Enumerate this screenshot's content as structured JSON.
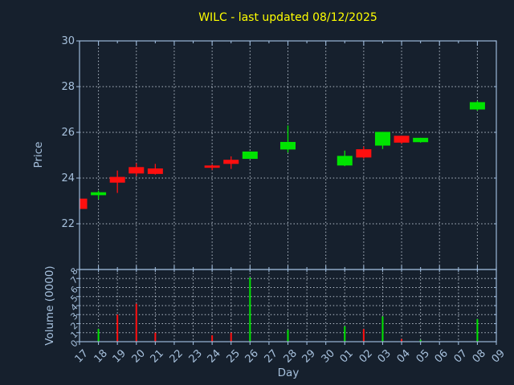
{
  "title": {
    "text": "WILC - last updated 08/12/2025",
    "color": "#ffff00"
  },
  "colors": {
    "background": "#16202d",
    "frame": "#9cb8d8",
    "grid": "#c3cdd9",
    "tick_label": "#a6c0dc",
    "up": "#00e400",
    "down": "#ff0f0f"
  },
  "chart_data": [
    {
      "type": "candlestick",
      "title": "WILC - last updated 08/12/2025",
      "xlabel": "Day",
      "ylabel": "Price",
      "categories": [
        "17",
        "18",
        "19",
        "20",
        "21",
        "22",
        "23",
        "24",
        "25",
        "26",
        "27",
        "28",
        "29",
        "30",
        "01",
        "02",
        "03",
        "04",
        "05",
        "06",
        "07",
        "08",
        "09"
      ],
      "ylim": [
        20,
        30
      ],
      "yticks": [
        22,
        24,
        26,
        28,
        30
      ],
      "grid": true,
      "legend": "none",
      "candles": [
        {
          "day": "17",
          "open": 23.1,
          "high": 23.12,
          "low": 22.62,
          "close": 22.65
        },
        {
          "day": "18",
          "open": 23.25,
          "high": 23.45,
          "low": 23.07,
          "close": 23.38
        },
        {
          "day": "19",
          "open": 24.05,
          "high": 24.33,
          "low": 23.35,
          "close": 23.8
        },
        {
          "day": "20",
          "open": 24.48,
          "high": 24.65,
          "low": 24.08,
          "close": 24.2
        },
        {
          "day": "21",
          "open": 24.42,
          "high": 24.62,
          "low": 24.15,
          "close": 24.18
        },
        {
          "day": "24",
          "open": 24.55,
          "high": 24.6,
          "low": 24.35,
          "close": 24.45
        },
        {
          "day": "25",
          "open": 24.8,
          "high": 24.95,
          "low": 24.4,
          "close": 24.62
        },
        {
          "day": "26",
          "open": 24.84,
          "high": 25.16,
          "low": 24.84,
          "close": 25.16
        },
        {
          "day": "28",
          "open": 25.25,
          "high": 26.3,
          "low": 25.12,
          "close": 25.58
        },
        {
          "day": "01",
          "open": 24.55,
          "high": 25.2,
          "low": 24.52,
          "close": 24.97
        },
        {
          "day": "02",
          "open": 25.26,
          "high": 25.38,
          "low": 24.85,
          "close": 24.9
        },
        {
          "day": "03",
          "open": 25.42,
          "high": 26.02,
          "low": 25.27,
          "close": 26.02
        },
        {
          "day": "04",
          "open": 25.85,
          "high": 25.85,
          "low": 25.5,
          "close": 25.55
        },
        {
          "day": "05",
          "open": 25.57,
          "high": 25.76,
          "low": 25.55,
          "close": 25.76
        },
        {
          "day": "08",
          "open": 27.0,
          "high": 27.38,
          "low": 26.95,
          "close": 27.32
        }
      ]
    },
    {
      "type": "bar",
      "ylabel": "Volume (0000)",
      "categories": [
        "17",
        "18",
        "19",
        "20",
        "21",
        "22",
        "23",
        "24",
        "25",
        "26",
        "27",
        "28",
        "29",
        "30",
        "01",
        "02",
        "03",
        "04",
        "05",
        "06",
        "07",
        "08",
        "09"
      ],
      "ylim": [
        0,
        8
      ],
      "yticks": [
        0,
        1,
        2,
        3,
        4,
        5,
        6,
        7,
        8
      ],
      "grid": true,
      "bars": [
        {
          "day": "18",
          "value": 1.4,
          "direction": "up"
        },
        {
          "day": "19",
          "value": 3.0,
          "direction": "down"
        },
        {
          "day": "20",
          "value": 4.2,
          "direction": "down"
        },
        {
          "day": "21",
          "value": 1.0,
          "direction": "down"
        },
        {
          "day": "24",
          "value": 0.7,
          "direction": "down"
        },
        {
          "day": "25",
          "value": 1.0,
          "direction": "down"
        },
        {
          "day": "26",
          "value": 7.1,
          "direction": "up"
        },
        {
          "day": "28",
          "value": 1.3,
          "direction": "up"
        },
        {
          "day": "01",
          "value": 1.7,
          "direction": "up"
        },
        {
          "day": "02",
          "value": 1.4,
          "direction": "down"
        },
        {
          "day": "03",
          "value": 2.8,
          "direction": "up"
        },
        {
          "day": "04",
          "value": 0.3,
          "direction": "down"
        },
        {
          "day": "05",
          "value": 0.2,
          "direction": "up"
        },
        {
          "day": "08",
          "value": 2.5,
          "direction": "up"
        }
      ]
    }
  ]
}
